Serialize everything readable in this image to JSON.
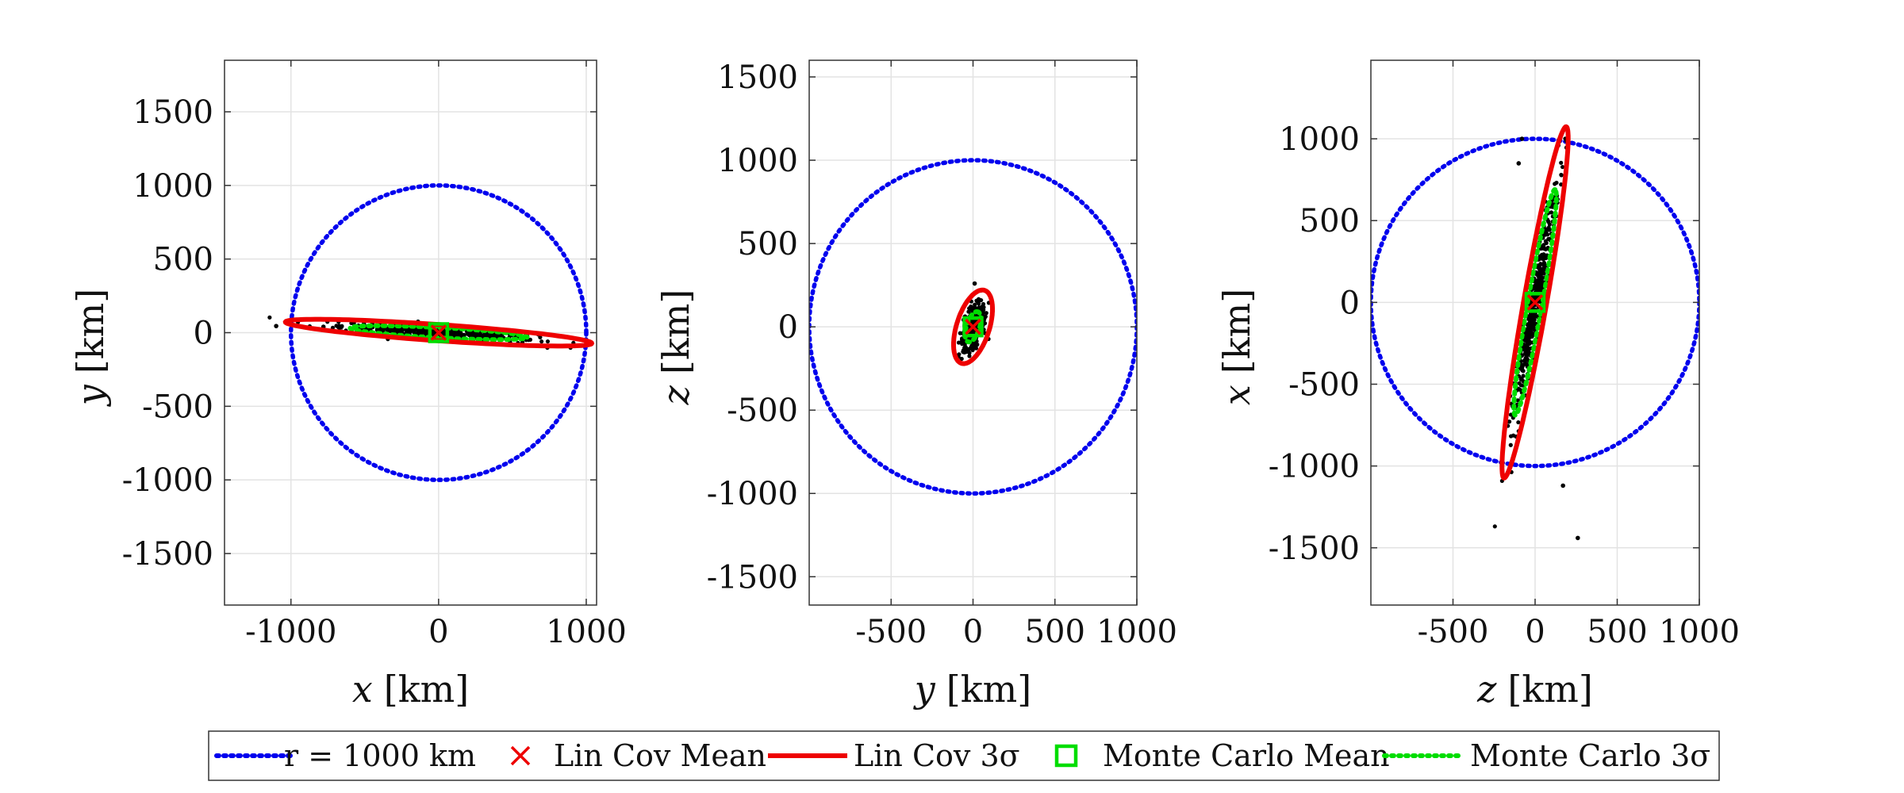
{
  "chart_data": [
    {
      "type": "scatter",
      "title": "",
      "xlabel": "x",
      "ylabel": "y",
      "unit": "[km]",
      "xlim": [
        -1450,
        1070
      ],
      "ylim": [
        -1850,
        1850
      ],
      "xticks": [
        -1000,
        0,
        1000
      ],
      "yticks": [
        -1500,
        -1000,
        -500,
        0,
        500,
        1000,
        1500
      ],
      "xtick_labels": [
        "-1000",
        "0",
        "1000"
      ],
      "ytick_labels": [
        "-1500",
        "-1000",
        "-500",
        "0",
        "500",
        "1000",
        "1500"
      ],
      "circle_radius": 1000,
      "lincov_mean": [
        0,
        0
      ],
      "lincov_ellipse": {
        "semi_major": 1040,
        "semi_minor": 55,
        "angle_deg": -4
      },
      "mc_mean": [
        0,
        0
      ],
      "mc_ellipse": {
        "semi_major": 600,
        "semi_minor": 35,
        "angle_deg": -3
      },
      "samples_spread": {
        "major": 330,
        "minor": 20,
        "angle_deg": -4
      },
      "outliers": [
        [
          -1100,
          45
        ],
        [
          -780,
          40
        ],
        [
          600,
          -25
        ]
      ]
    },
    {
      "type": "scatter",
      "title": "",
      "xlabel": "y",
      "ylabel": "z",
      "unit": "[km]",
      "xlim": [
        -1000,
        1000
      ],
      "ylim": [
        -1670,
        1600
      ],
      "xticks": [
        -500,
        0,
        500,
        1000
      ],
      "yticks": [
        -1500,
        -1000,
        -500,
        0,
        500,
        1000,
        1500
      ],
      "xtick_labels": [
        "-500",
        "0",
        "500",
        "1000"
      ],
      "ytick_labels": [
        "-1500",
        "-1000",
        "-500",
        "0",
        "500",
        "1000",
        "1500"
      ],
      "circle_radius": 1000,
      "lincov_mean": [
        0,
        0
      ],
      "lincov_ellipse": {
        "semi_major": 230,
        "semi_minor": 100,
        "angle_deg": 72
      },
      "mc_mean": [
        0,
        0
      ],
      "mc_ellipse": {
        "semi_major": 95,
        "semi_minor": 40,
        "angle_deg": 72
      },
      "samples_spread": {
        "major": 70,
        "minor": 28,
        "angle_deg": 72
      },
      "outliers": [
        [
          10,
          260
        ],
        [
          -60,
          -150
        ]
      ]
    },
    {
      "type": "scatter",
      "title": "",
      "xlabel": "z",
      "ylabel": "x",
      "unit": "[km]",
      "xlim": [
        -1000,
        1000
      ],
      "ylim": [
        -1850,
        1480
      ],
      "xticks": [
        -500,
        0,
        500,
        1000
      ],
      "yticks": [
        -1500,
        -1000,
        -500,
        0,
        500,
        1000
      ],
      "xtick_labels": [
        "-500",
        "0",
        "500",
        "1000"
      ],
      "ytick_labels": [
        "-1500",
        "-1000",
        "-500",
        "0",
        "500",
        "1000"
      ],
      "circle_radius": 1000,
      "lincov_mean": [
        0,
        0
      ],
      "lincov_ellipse": {
        "semi_major": 1090,
        "semi_minor": 70,
        "angle_deg": 80
      },
      "mc_mean": [
        0,
        0
      ],
      "mc_ellipse": {
        "semi_major": 700,
        "semi_minor": 45,
        "angle_deg": 80
      },
      "samples_spread": {
        "major": 370,
        "minor": 22,
        "angle_deg": 80
      },
      "outliers": [
        [
          170,
          -1120
        ],
        [
          260,
          -1440
        ],
        [
          -100,
          850
        ],
        [
          -80,
          1000
        ]
      ]
    }
  ],
  "legend": {
    "items": [
      {
        "label": "r = 1000 km",
        "style": "dotted-line",
        "color": "#0000ee"
      },
      {
        "label": "Lin Cov Mean",
        "style": "x-marker",
        "color": "#ee0000"
      },
      {
        "label": "Lin Cov 3σ",
        "style": "solid-line",
        "color": "#ee0000"
      },
      {
        "label": "Monte Carlo Mean",
        "style": "square-marker",
        "color": "#00dd00"
      },
      {
        "label": "Monte Carlo 3σ",
        "style": "dotted-line",
        "color": "#00dd00"
      }
    ]
  },
  "colors": {
    "circle": "#0000ee",
    "lincov": "#ee0000",
    "mc": "#00dd00",
    "samples": "#000000",
    "grid": "#e3e3e3",
    "axis": "#333333"
  }
}
